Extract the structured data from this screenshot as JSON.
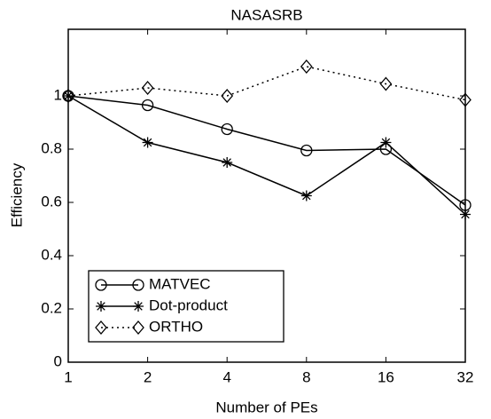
{
  "chart_data": {
    "type": "line",
    "title": "NASASRB",
    "xlabel": "Number of PEs",
    "ylabel": "Efficiency",
    "categories": [
      "1",
      "2",
      "4",
      "8",
      "16",
      "32"
    ],
    "series": [
      {
        "name": "MATVEC",
        "color": "#000000",
        "marker": "circle",
        "linestyle": "solid",
        "values": [
          1,
          0.965,
          0.875,
          0.795,
          0.8,
          0.59
        ]
      },
      {
        "name": "Dot-product",
        "color": "#000000",
        "marker": "star",
        "linestyle": "solid",
        "values": [
          1,
          0.825,
          0.75,
          0.625,
          0.825,
          0.555
        ]
      },
      {
        "name": "ORTHO",
        "color": "#000000",
        "marker": "diamond",
        "linestyle": "dotted",
        "values": [
          1,
          1.03,
          1.0,
          1.11,
          1.045,
          0.985
        ]
      }
    ],
    "ylim": [
      0,
      1.25
    ],
    "yticks": [
      0,
      0.2,
      0.4,
      0.6,
      0.8,
      1
    ],
    "legend": "lower left",
    "grid": false
  }
}
